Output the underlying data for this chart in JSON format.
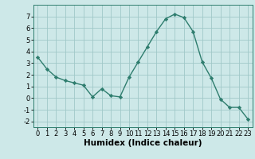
{
  "x": [
    0,
    1,
    2,
    3,
    4,
    5,
    6,
    7,
    8,
    9,
    10,
    11,
    12,
    13,
    14,
    15,
    16,
    17,
    18,
    19,
    20,
    21,
    22,
    23
  ],
  "y": [
    3.5,
    2.5,
    1.8,
    1.5,
    1.3,
    1.1,
    0.1,
    0.8,
    0.2,
    0.1,
    1.8,
    3.1,
    4.4,
    5.7,
    6.8,
    7.2,
    6.9,
    5.7,
    3.1,
    1.7,
    -0.1,
    -0.8,
    -0.8,
    -1.8
  ],
  "line_color": "#2e7d6e",
  "marker": "D",
  "marker_size": 2.2,
  "background_color": "#cde8e8",
  "grid_color": "#a0c8c8",
  "xlabel": "Humidex (Indice chaleur)",
  "xlabel_fontsize": 7.5,
  "xlim": [
    -0.5,
    23.5
  ],
  "ylim": [
    -2.5,
    8.0
  ],
  "yticks": [
    -2,
    -1,
    0,
    1,
    2,
    3,
    4,
    5,
    6,
    7
  ],
  "xticks": [
    0,
    1,
    2,
    3,
    4,
    5,
    6,
    7,
    8,
    9,
    10,
    11,
    12,
    13,
    14,
    15,
    16,
    17,
    18,
    19,
    20,
    21,
    22,
    23
  ],
  "tick_label_fontsize": 6.0,
  "line_width": 1.0
}
